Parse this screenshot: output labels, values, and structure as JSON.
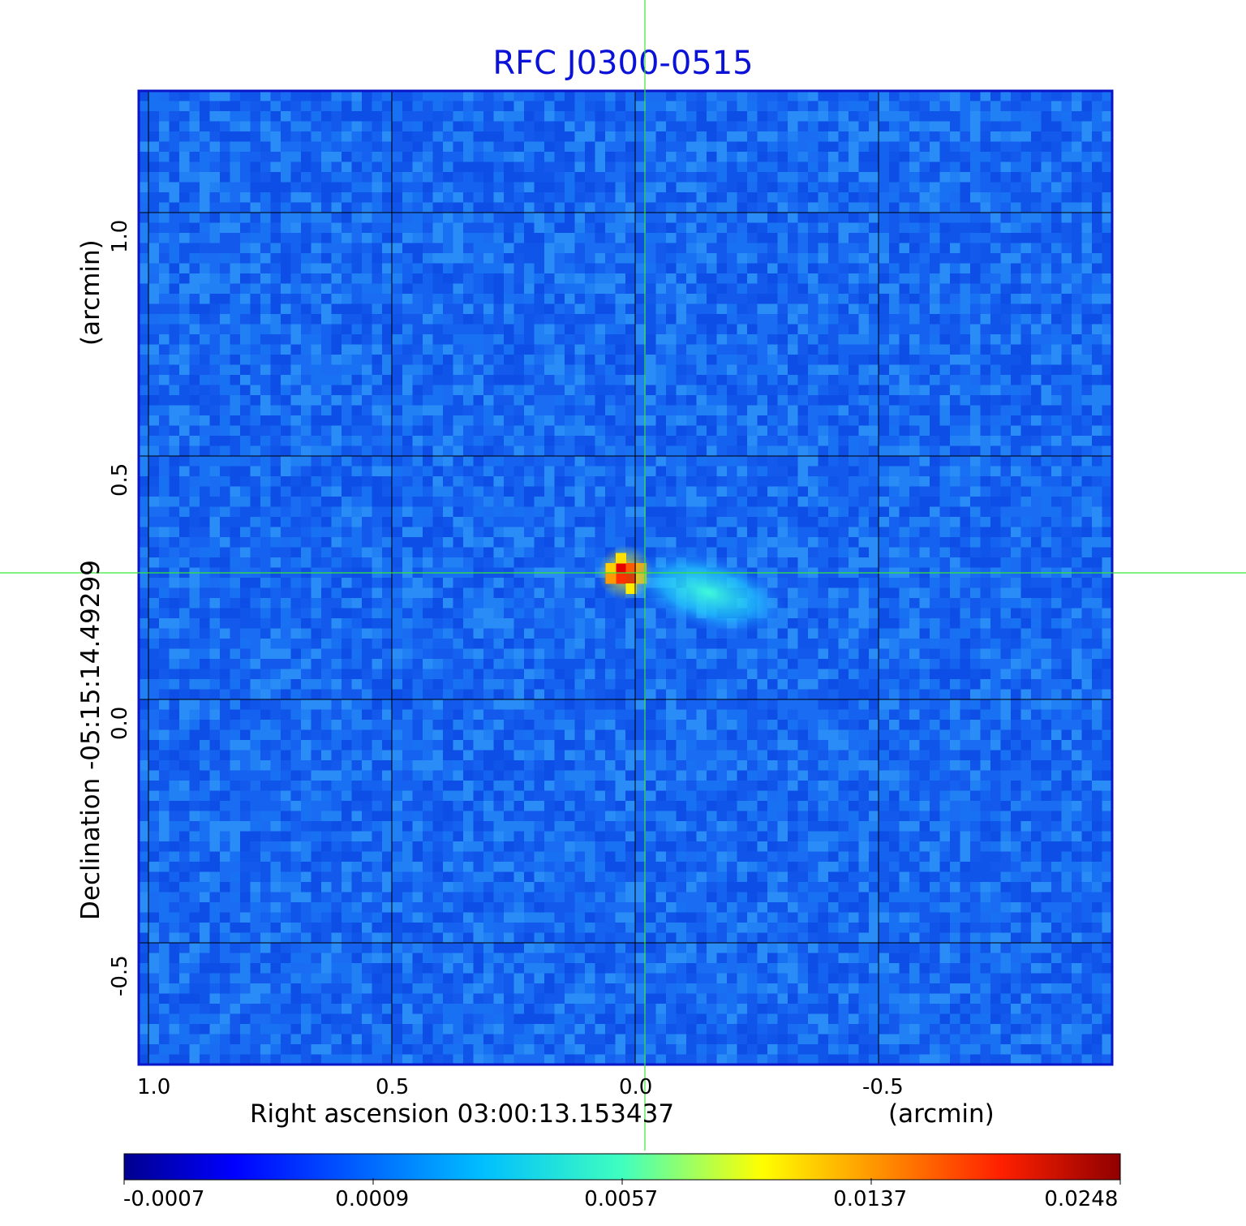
{
  "chart_data": {
    "type": "heatmap",
    "title": "RFC J0300-0515",
    "xlabel": "Right ascension  03:00:13.153437",
    "xunit": "(arcmin)",
    "ylabel": "Declination  -05:15:14.49299",
    "yunit": "(arcmin)",
    "x_ticks": [
      "1.0",
      "0.5",
      "0.0",
      "-0.5"
    ],
    "x_tick_values": [
      1.0,
      0.5,
      0.0,
      -0.5
    ],
    "y_ticks": [
      "1.0",
      "0.5",
      "0.0",
      "-0.5"
    ],
    "y_tick_values": [
      1.0,
      0.5,
      0.0,
      -0.5
    ],
    "xlim": [
      1.02,
      -0.98
    ],
    "ylim": [
      -0.75,
      1.25
    ],
    "grid": true,
    "crosshair": {
      "x": -0.02,
      "y": 0.26
    },
    "colorbar": {
      "colormap": "jet",
      "ticks": [
        "-0.0007",
        "0.0009",
        "0.0057",
        "0.0137",
        "0.0248"
      ]
    },
    "features": [
      {
        "kind": "peak",
        "x": 0.02,
        "y": 0.26,
        "value": 0.0248
      },
      {
        "kind": "jet",
        "x": -0.15,
        "y": 0.22,
        "value": 0.004
      }
    ]
  },
  "colors": {
    "title": "#0b12d8",
    "frame": "#0a14c8",
    "crosshair": "#37e637",
    "grid": "#000000"
  }
}
